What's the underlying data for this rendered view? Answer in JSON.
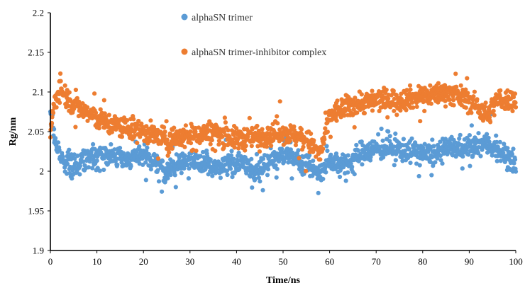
{
  "chart_data": {
    "type": "scatter",
    "title": "",
    "xlabel": "Time/ns",
    "ylabel": "Rg/nm",
    "xlim": [
      0,
      100
    ],
    "ylim": [
      1.9,
      2.2
    ],
    "xticks": [
      "0",
      "10",
      "20",
      "30",
      "40",
      "50",
      "60",
      "70",
      "80",
      "90",
      "100"
    ],
    "yticks": [
      "1.9",
      "1.95",
      "2",
      "2.05",
      "2.1",
      "2.15",
      "2.2"
    ],
    "grid": false,
    "legend_position": "top-center",
    "series": [
      {
        "name": "alphaSN trimer",
        "color": "#5B9BD5",
        "anchors_x": [
          0,
          1,
          2,
          5,
          8,
          12,
          16,
          20,
          25,
          30,
          35,
          40,
          45,
          50,
          55,
          58,
          60,
          63,
          67,
          72,
          78,
          82,
          86,
          90,
          94,
          97,
          100
        ],
        "anchors_y": [
          2.07,
          2.04,
          2.02,
          2.005,
          2.02,
          2.02,
          2.015,
          2.02,
          2.0,
          2.015,
          2.005,
          2.01,
          2.0,
          2.025,
          2.01,
          1.995,
          2.015,
          2.005,
          2.025,
          2.03,
          2.025,
          2.02,
          2.03,
          2.03,
          2.035,
          2.025,
          2.005
        ]
      },
      {
        "name": "alphaSN trimer-inhibitor complex",
        "color": "#ED7D31",
        "anchors_x": [
          0,
          1,
          2,
          4,
          6,
          9,
          12,
          16,
          20,
          25,
          30,
          35,
          40,
          45,
          50,
          55,
          58,
          60,
          63,
          66,
          70,
          75,
          80,
          85,
          90,
          94,
          96,
          100
        ],
        "anchors_y": [
          2.05,
          2.09,
          2.105,
          2.09,
          2.08,
          2.07,
          2.06,
          2.055,
          2.05,
          2.04,
          2.045,
          2.05,
          2.04,
          2.045,
          2.05,
          2.04,
          2.02,
          2.07,
          2.08,
          2.085,
          2.09,
          2.09,
          2.095,
          2.1,
          2.09,
          2.07,
          2.09,
          2.09
        ]
      }
    ]
  }
}
